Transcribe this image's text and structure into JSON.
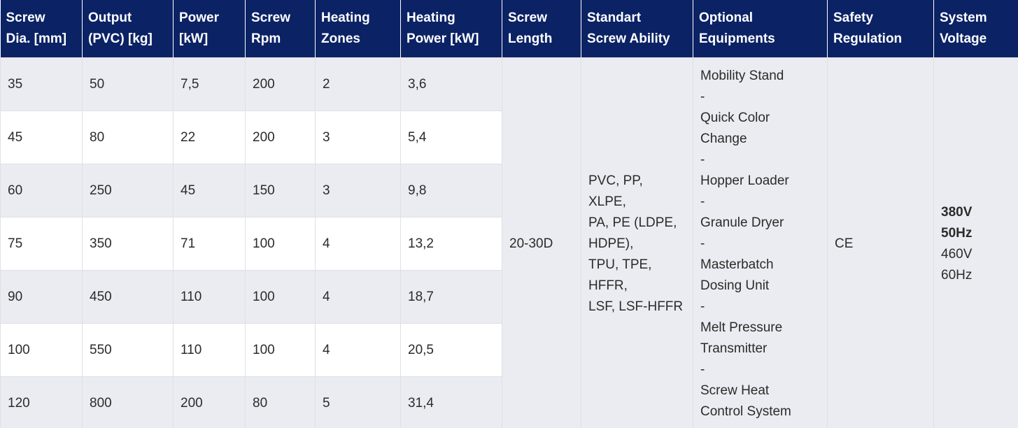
{
  "table": {
    "header": [
      [
        "Screw",
        "Dia. [mm]"
      ],
      [
        "Output",
        "(PVC) [kg]"
      ],
      [
        "Power",
        "[kW]"
      ],
      [
        "Screw",
        "Rpm"
      ],
      [
        "Heating",
        "Zones"
      ],
      [
        "Heating",
        "Power [kW]"
      ],
      [
        "Screw",
        "Length"
      ],
      [
        "Standart",
        "Screw Ability"
      ],
      [
        "Optional",
        "Equipments"
      ],
      [
        "Safety",
        "Regulation"
      ],
      [
        "System",
        "Voltage"
      ]
    ],
    "rows": [
      [
        "35",
        "50",
        "7,5",
        "200",
        "2",
        "3,6"
      ],
      [
        "45",
        "80",
        "22",
        "200",
        "3",
        "5,4"
      ],
      [
        "60",
        "250",
        "45",
        "150",
        "3",
        "9,8"
      ],
      [
        "75",
        "350",
        "71",
        "100",
        "4",
        "13,2"
      ],
      [
        "90",
        "450",
        "110",
        "100",
        "4",
        "18,7"
      ],
      [
        "100",
        "550",
        "110",
        "100",
        "4",
        "20,5"
      ],
      [
        "120",
        "800",
        "200",
        "80",
        "5",
        "31,4"
      ]
    ],
    "screw_length": "20-30D",
    "screw_ability": [
      "PVC, PP,",
      "XLPE,",
      "PA, PE (LDPE,",
      "HDPE),",
      "TPU, TPE,",
      "HFFR,",
      "LSF, LSF-HFFR"
    ],
    "optional_equipments": [
      "Mobility Stand",
      "-",
      "Quick Color",
      "Change",
      "-",
      "Hopper Loader",
      "-",
      "Granule Dryer",
      "-",
      "Masterbatch",
      "Dosing Unit",
      "-",
      "Melt Pressure",
      "Transmitter",
      "-",
      "Screw Heat",
      "Control System"
    ],
    "safety_regulation": "CE",
    "system_voltage": {
      "bold": [
        "380V",
        "50Hz"
      ],
      "normal": [
        "460V",
        "60Hz"
      ]
    }
  }
}
